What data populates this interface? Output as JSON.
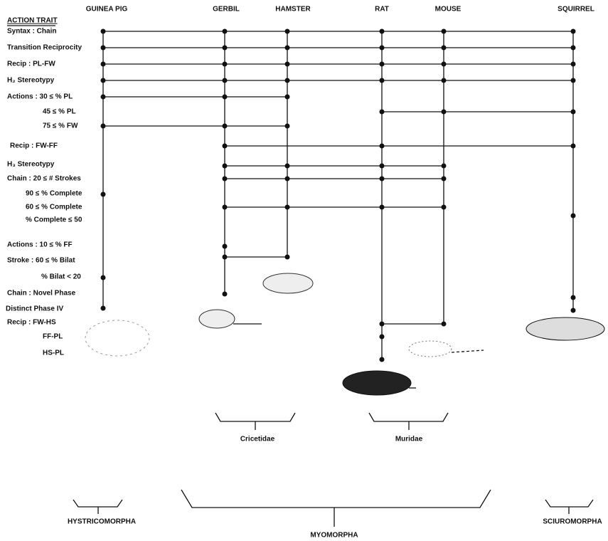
{
  "header": "ACTION TRAIT",
  "species": [
    "GUINEA PIG",
    "GERBIL",
    "HAMSTER",
    "RAT",
    "MOUSE",
    "SQUIRREL"
  ],
  "traits": [
    "Syntax : Chain",
    "Transition Reciprocity",
    "Recip : PL-FW",
    "H₂ Stereotypy",
    "Actions : 30 ≤ % PL",
    "45 ≤ % PL",
    "75 ≤ % FW",
    "Recip : FW-FF",
    "H₃ Stereotypy",
    "Chain : 20 ≤ # Strokes",
    "90 ≤ % Complete",
    "60 ≤ % Complete",
    "% Complete ≤ 50",
    "Actions : 10 ≤ % FF",
    "Stroke : 60 ≤ % Bilat",
    "% Bilat < 20",
    "Chain : Novel Phase",
    "Distinct Phase IV",
    "Recip : FW-HS",
    "FF-PL",
    "HS-PL"
  ],
  "families": [
    "Cricetidae",
    "Muridae"
  ],
  "suborders": [
    "HYSTRICOMORPHA",
    "MYOMORPHA",
    "SCIUROMORPHA"
  ]
}
